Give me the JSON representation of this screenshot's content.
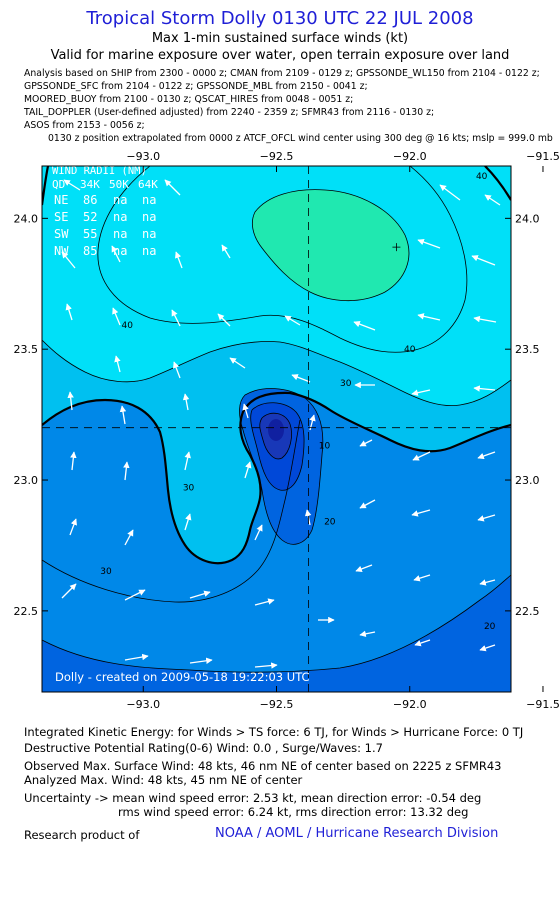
{
  "header": {
    "title": "Tropical Storm Dolly 0130 UTC 22 JUL 2008",
    "subtitle_1": "Max 1-min sustained surface winds (kt)",
    "subtitle_2": "Valid for marine exposure over water, open terrain exposure over land"
  },
  "sources": [
    "Analysis based on   SHIP from 2300 - 0000 z;  CMAN from 2109 - 0129 z;  GPSSONDE_WL150 from 2104 - 0122 z;",
    "GPSSONDE_SFC from 2104 - 0122 z;  GPSSONDE_MBL from 2150 - 0041 z;",
    "MOORED_BUOY from 2100 - 0130 z;  QSCAT_HIRES from 0048 - 0051 z;",
    "TAIL_DOPPLER (User-defined adjusted) from 2240 - 2359 z;  SFMR43 from 2116 - 0130 z;",
    "ASOS from 2153 - 0056 z;",
    "0130 z position extrapolated from 0000 z ATCF_OFCL wind center using 300 deg @ 16 kts; mslp = 999.0 mb"
  ],
  "wind_radii": {
    "title": "WIND RADII (NM)",
    "header": [
      "QD",
      "34K",
      "50K",
      "64K"
    ],
    "rows": [
      [
        "NE",
        "86",
        "na",
        "na"
      ],
      [
        "SE",
        "52",
        "na",
        "na"
      ],
      [
        "SW",
        "55",
        "na",
        "na"
      ],
      [
        "NW",
        "85",
        "na",
        "na"
      ]
    ]
  },
  "created_label": "Dolly - created on 2009-05-18 19:22:03 UTC",
  "chart_data": {
    "type": "contour",
    "x_ticks": [
      -93.0,
      -92.5,
      -92.0,
      -91.5
    ],
    "x_tick_labels": [
      "−93.0",
      "−92.5",
      "−92.0",
      "−91.5"
    ],
    "y_ticks": [
      24.0,
      23.5,
      23.0,
      22.5
    ],
    "y_tick_labels": [
      "24.0",
      "23.5",
      "23.0",
      "22.5"
    ],
    "xlim": [
      -93.38,
      -91.62
    ],
    "ylim": [
      22.19,
      24.2
    ],
    "center": {
      "lon": -92.38,
      "lat": 23.2
    },
    "max_wind_location": {
      "lon": -92.05,
      "lat": 23.89
    },
    "contour_labels": [
      {
        "text": "40",
        "lon": -91.73,
        "lat": 24.15
      },
      {
        "text": "40",
        "lon": -93.06,
        "lat": 23.58
      },
      {
        "text": "40",
        "lon": -92.0,
        "lat": 23.49
      },
      {
        "text": "30",
        "lon": -92.24,
        "lat": 23.36
      },
      {
        "text": "10",
        "lon": -92.32,
        "lat": 23.12
      },
      {
        "text": "30",
        "lon": -92.83,
        "lat": 22.96
      },
      {
        "text": "20",
        "lon": -92.3,
        "lat": 22.83
      },
      {
        "text": "30",
        "lon": -93.14,
        "lat": 22.64
      },
      {
        "text": "20",
        "lon": -91.7,
        "lat": 22.43
      }
    ],
    "colors": {
      "band_40_plus": "#00e0f8",
      "band_45_plus": "#20e8b0",
      "band_30_40": "#00c0f0",
      "band_20_30": "#0088e8",
      "band_10_20": "#0064e0",
      "band_5_10": "#0048d8",
      "band_core": "#1838b8",
      "arrow": "#ffffff"
    }
  },
  "footer": {
    "ike": "Integrated Kinetic Energy:  for Winds > TS force: 6 TJ,  for Winds > Hurricane Force: 0 TJ",
    "dpr": "Destructive Potential Rating(0-6)   Wind: 0.0 , Surge/Waves: 1.7",
    "observed": "Observed Max. Surface Wind: 48 kts, 46 nm NE of center based on 2225 z SFMR43",
    "analyzed": "Analyzed Max. Wind: 48 kts, 45 nm NE of center",
    "uncertainty_1": "Uncertainty -> mean wind speed error: 2.53 kt,   mean direction error:  -0.54 deg",
    "uncertainty_2": "rms wind speed error: 6.24 kt,   rms direction error: 13.32 deg",
    "research": "Research product of",
    "org": "NOAA / AOML / Hurricane Research Division"
  }
}
